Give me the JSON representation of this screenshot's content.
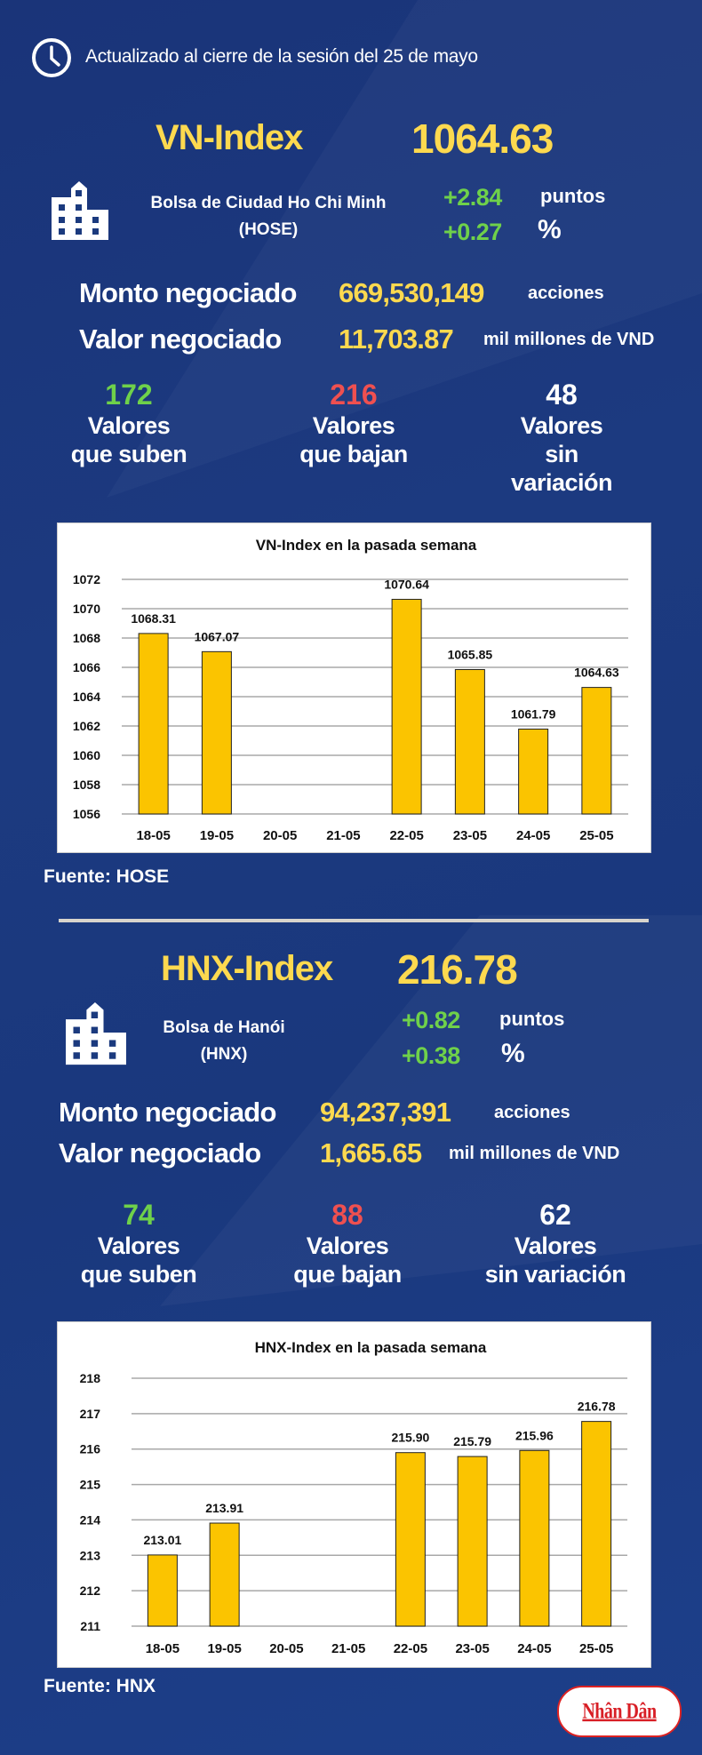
{
  "header": {
    "updated": "Actualizado al cierre de la sesión del 25 de mayo",
    "icon": "clock-icon"
  },
  "colors": {
    "accent": "#fdd94f",
    "up": "#6fd14a",
    "down": "#ef5050",
    "bar": "#fbc400",
    "background": "#1b3a7e"
  },
  "vn": {
    "name": "VN-Index",
    "value": "1064.63",
    "exchange_line1": "Bolsa de Ciudad Ho Chi Minh",
    "exchange_line2": "(HOSE)",
    "change_points": "+2.84",
    "points_label": "puntos",
    "change_pct": "+0.27",
    "pct_label": "%",
    "volume_label": "Monto negociado",
    "volume": "669,530,149",
    "volume_unit": "acciones",
    "value_label": "Valor negociado",
    "traded_value": "11,703.87",
    "value_unit": "mil millones de VND",
    "up_count": "172",
    "down_count": "216",
    "flat_count": "48",
    "up_l1": "Valores",
    "up_l2": "que suben",
    "down_l1": "Valores",
    "down_l2": "que bajan",
    "flat_l1": "Valores",
    "flat_l2": "sin variación",
    "source": "Fuente: HOSE"
  },
  "hnx": {
    "name": "HNX-Index",
    "value": "216.78",
    "exchange_line1": "Bolsa de Hanói",
    "exchange_line2": "(HNX)",
    "change_points": "+0.82",
    "points_label": "puntos",
    "change_pct": "+0.38",
    "pct_label": "%",
    "volume_label": "Monto negociado",
    "volume": "94,237,391",
    "volume_unit": "acciones",
    "value_label": "Valor negociado",
    "traded_value": "1,665.65",
    "value_unit": "mil millones de VND",
    "up_count": "74",
    "down_count": "88",
    "flat_count": "62",
    "up_l1": "Valores",
    "up_l2": "que suben",
    "down_l1": "Valores",
    "down_l2": "que bajan",
    "flat_l1": "Valores",
    "flat_l2": "sin variación",
    "source": "Fuente:  HNX"
  },
  "logo": {
    "text": "Nhân Dân"
  },
  "chart_data": [
    {
      "type": "bar",
      "title": "VN-Index en la pasada semana",
      "categories": [
        "18-05",
        "19-05",
        "20-05",
        "21-05",
        "22-05",
        "23-05",
        "24-05",
        "25-05"
      ],
      "values": [
        1068.31,
        1067.07,
        null,
        null,
        1070.64,
        1065.85,
        1061.79,
        1064.63
      ],
      "labels": [
        "1068.31",
        "1067.07",
        "",
        "",
        "1070.64",
        "1065.85",
        "1061.79",
        "1064.63"
      ],
      "yticks": [
        "1056",
        "1058",
        "1060",
        "1062",
        "1064",
        "1066",
        "1068",
        "1070",
        "1072"
      ],
      "ylim": [
        1056,
        1072
      ],
      "ystep": 2,
      "grid": true,
      "xlabel": "",
      "ylabel": ""
    },
    {
      "type": "bar",
      "title": "HNX-Index en la pasada semana",
      "categories": [
        "18-05",
        "19-05",
        "20-05",
        "21-05",
        "22-05",
        "23-05",
        "24-05",
        "25-05"
      ],
      "values": [
        213.01,
        213.91,
        null,
        null,
        215.9,
        215.79,
        215.96,
        216.78
      ],
      "labels": [
        "213.01",
        "213.91",
        "",
        "",
        "215.90",
        "215.79",
        "215.96",
        "216.78"
      ],
      "yticks": [
        "211",
        "212",
        "213",
        "214",
        "215",
        "216",
        "217",
        "218"
      ],
      "ylim": [
        211,
        218
      ],
      "ystep": 1,
      "grid": true,
      "xlabel": "",
      "ylabel": ""
    }
  ]
}
